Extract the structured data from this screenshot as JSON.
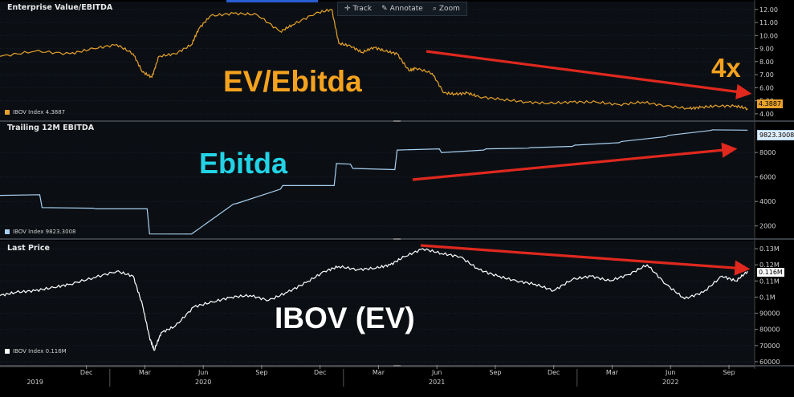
{
  "toolbar": {
    "track": "Track",
    "annotate": "Annotate",
    "zoom": "Zoom",
    "track_icon": "crosshair-icon",
    "annotate_icon": "pencil-icon",
    "zoom_icon": "zoom-icon"
  },
  "colors": {
    "ev_ebitda": "#e8a22a",
    "ebitda": "#a8d0f0",
    "price": "#ffffff",
    "arrow": "#e0281e",
    "annot_ev": "#f5a21e",
    "annot_ebitda": "#22d3e6",
    "annot_price": "#ffffff"
  },
  "panels": [
    {
      "title": "Enterprise Value/EBITDA",
      "legend": "IBOV Index  4.3887",
      "last_value": "4.3887",
      "annotation": "EV/Ebitda",
      "annotation2": "4x"
    },
    {
      "title": "Trailing 12M EBITDA",
      "legend": "IBOV Index  9823.3008",
      "last_value": "9823.3008",
      "annotation": "Ebitda"
    },
    {
      "title": "Last Price",
      "legend": "IBOV Index  0.116M",
      "last_value": "0.116M",
      "annotation": "IBOV (EV)"
    }
  ],
  "chart_data": [
    {
      "type": "line",
      "title": "Enterprise Value/EBITDA",
      "series": [
        {
          "name": "IBOV Index",
          "x": [
            2019.55,
            2019.7,
            2019.85,
            2019.95,
            2020.05,
            2020.12,
            2020.16,
            2020.2,
            2020.23,
            2020.3,
            2020.37,
            2020.4,
            2020.45,
            2020.55,
            2020.65,
            2020.75,
            2020.8,
            2020.9,
            2020.97,
            2021.0,
            2021.05,
            2021.1,
            2021.15,
            2021.2,
            2021.25,
            2021.3,
            2021.33,
            2021.4,
            2021.45,
            2021.5,
            2021.55,
            2021.6,
            2021.7,
            2021.8,
            2021.9,
            2022.0,
            2022.1,
            2022.2,
            2022.3,
            2022.4,
            2022.5,
            2022.55,
            2022.62,
            2022.7,
            2022.75
          ],
          "values": [
            8.4,
            8.8,
            8.6,
            9.0,
            9.3,
            8.6,
            7.2,
            6.8,
            8.4,
            8.6,
            9.3,
            10.5,
            11.5,
            11.7,
            11.6,
            10.3,
            10.8,
            11.7,
            12.0,
            9.4,
            9.2,
            8.7,
            9.1,
            8.8,
            8.6,
            7.3,
            7.5,
            7.1,
            5.6,
            5.5,
            5.6,
            5.3,
            5.1,
            4.9,
            4.8,
            4.9,
            4.9,
            4.7,
            4.9,
            4.6,
            4.4,
            4.5,
            4.6,
            4.6,
            4.39
          ]
        }
      ],
      "ylim": [
        3.5,
        12.6
      ],
      "yticks": [
        "12.00",
        "11.00",
        "10.00",
        "9.00",
        "8.00",
        "7.00",
        "6.00",
        "5.00",
        "4.00"
      ]
    },
    {
      "type": "line",
      "title": "Trailing 12M EBITDA",
      "series": [
        {
          "name": "IBOV Index",
          "x": [
            2019.55,
            2019.72,
            2019.73,
            2019.95,
            2019.96,
            2020.18,
            2020.19,
            2020.36,
            2020.37,
            2020.55,
            2020.56,
            2020.75,
            2020.76,
            2020.98,
            2020.99,
            2021.05,
            2021.06,
            2021.24,
            2021.25,
            2021.43,
            2021.44,
            2021.62,
            2021.63,
            2021.81,
            2021.82,
            2022.0,
            2022.01,
            2022.2,
            2022.21,
            2022.4,
            2022.41,
            2022.59,
            2022.6,
            2022.75
          ],
          "values": [
            4500,
            4550,
            3500,
            3450,
            3400,
            3400,
            1350,
            1340,
            1340,
            3800,
            3820,
            5000,
            5300,
            5300,
            7100,
            7050,
            6700,
            6600,
            8200,
            8300,
            8000,
            8200,
            8300,
            8350,
            8400,
            8500,
            8600,
            8800,
            8900,
            9300,
            9400,
            9800,
            9850,
            9823.3008
          ]
        }
      ],
      "ylim": [
        1000,
        10500
      ],
      "yticks": [
        "8000",
        "6000",
        "4000",
        "2000"
      ]
    },
    {
      "type": "line",
      "title": "Last Price",
      "series": [
        {
          "name": "IBOV Index",
          "x": [
            2019.55,
            2019.62,
            2019.7,
            2019.78,
            2019.85,
            2019.95,
            2020.05,
            2020.12,
            2020.16,
            2020.19,
            2020.21,
            2020.24,
            2020.3,
            2020.38,
            2020.46,
            2020.54,
            2020.62,
            2020.7,
            2020.78,
            2020.86,
            2020.94,
            2021.0,
            2021.08,
            2021.16,
            2021.22,
            2021.28,
            2021.36,
            2021.44,
            2021.52,
            2021.6,
            2021.68,
            2021.76,
            2021.84,
            2021.92,
            2022.0,
            2022.08,
            2022.16,
            2022.24,
            2022.32,
            2022.4,
            2022.48,
            2022.56,
            2022.64,
            2022.7,
            2022.75
          ],
          "values": [
            101000,
            103000,
            104000,
            106000,
            108000,
            112000,
            116000,
            113000,
            95000,
            75000,
            67000,
            78000,
            82000,
            94000,
            97000,
            100000,
            101000,
            98000,
            103000,
            109000,
            116000,
            119000,
            117000,
            118000,
            120000,
            125000,
            130000,
            127000,
            125000,
            117000,
            113000,
            110000,
            108000,
            104000,
            111000,
            113000,
            110000,
            114000,
            120000,
            108000,
            99000,
            103000,
            113000,
            110000,
            116000
          ]
        }
      ],
      "ylim": [
        58000,
        135000
      ],
      "yticks": [
        "0.13M",
        "0.12M",
        "0.11M",
        "0.1M",
        "90000",
        "80000",
        "70000",
        "60000"
      ]
    }
  ],
  "xaxis": {
    "months": [
      "Dec",
      "Mar",
      "Jun",
      "Sep",
      "Dec",
      "Mar",
      "Jun",
      "Sep",
      "Dec",
      "Mar",
      "Jun",
      "Sep"
    ],
    "month_dates": [
      2019.92,
      2020.17,
      2020.42,
      2020.67,
      2020.92,
      2021.17,
      2021.42,
      2021.67,
      2021.92,
      2022.17,
      2022.42,
      2022.67
    ],
    "years": [
      "2019",
      "2020",
      "2021",
      "2022"
    ],
    "year_dates": [
      2019.7,
      2020.42,
      2021.42,
      2022.42
    ]
  }
}
